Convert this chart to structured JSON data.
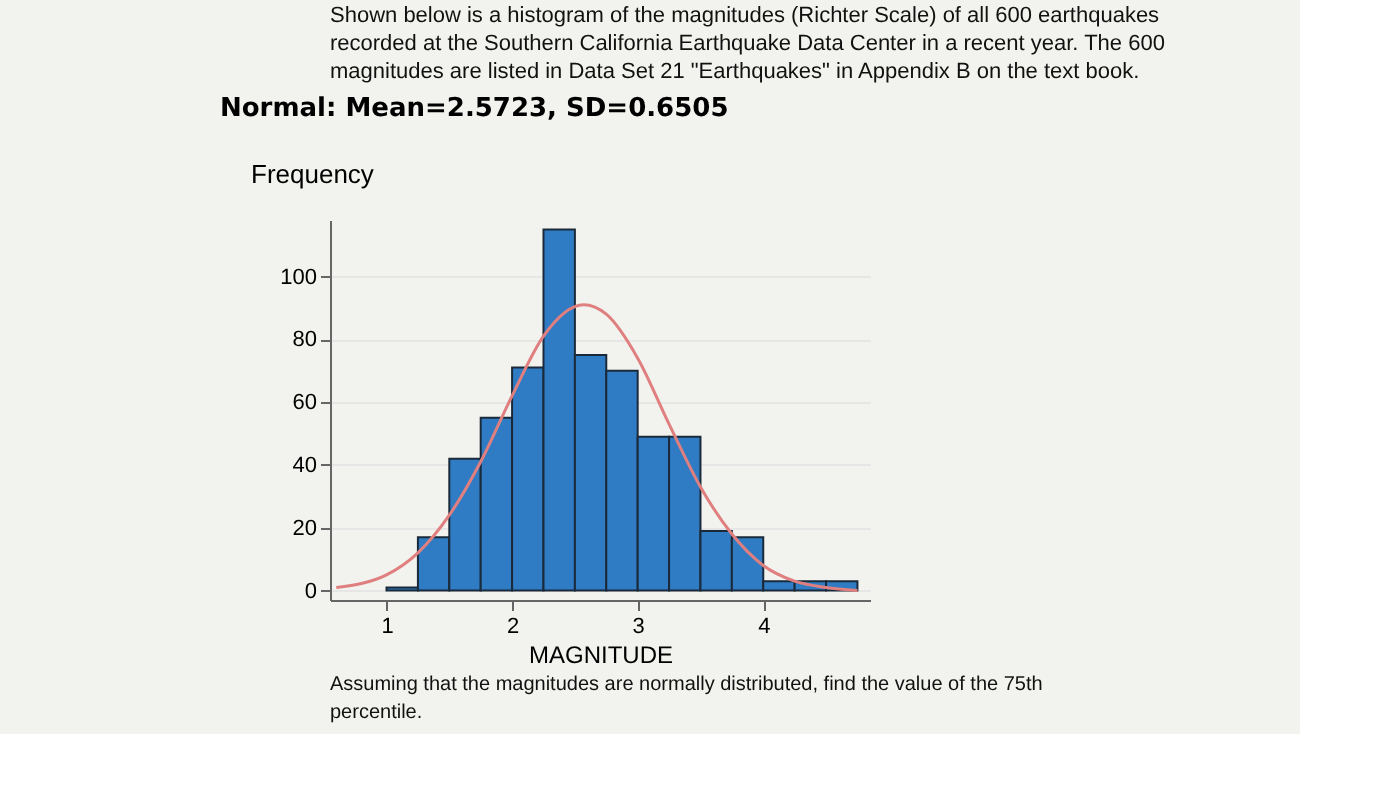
{
  "chart_data": {
    "type": "histogram",
    "title": "Normal: Mean=2.5723, SD=0.6505",
    "xlabel": "MAGNITUDE",
    "ylabel": "Frequency",
    "bins": [
      1.0,
      1.25,
      1.5,
      1.75,
      2.0,
      2.25,
      2.5,
      2.75,
      3.0,
      3.25,
      3.5,
      3.75,
      4.0,
      4.25,
      4.5,
      4.75
    ],
    "values": [
      1,
      17,
      42,
      55,
      71,
      115,
      75,
      70,
      49,
      49,
      19,
      17,
      3,
      3,
      3
    ],
    "color": "#2f7cc4",
    "series": [
      {
        "type": "line",
        "color": "#e07f7f",
        "x": [
          0.6,
          1.0,
          1.25,
          1.5,
          1.75,
          2.0,
          2.25,
          2.57,
          2.75,
          3.0,
          3.25,
          3.5,
          3.75,
          4.0,
          4.25,
          4.5,
          4.75
        ],
        "values": [
          1,
          5,
          12,
          24,
          41,
          62,
          81,
          91,
          88,
          74,
          53,
          33,
          18,
          8,
          3,
          1,
          0
        ]
      }
    ],
    "xlim": [
      0.55,
      4.85
    ],
    "ylim": [
      -3,
      118
    ],
    "xticks": [
      1,
      2,
      3,
      4
    ],
    "yticks": [
      0,
      20,
      40,
      60,
      80,
      100
    ],
    "grid": "y",
    "annotations": [
      "Shown below is a histogram of the magnitudes (Richter Scale) of all 600 earthquakes",
      "recorded at the Southern California Earthquake Data Center in a recent year. The 600",
      "magnitudes are listed in Data Set 21 \"Earthquakes\" in Appendix B on the text book.",
      "Assuming that the magnitudes are normally distributed, find the value of the 75th",
      "percentile."
    ]
  }
}
